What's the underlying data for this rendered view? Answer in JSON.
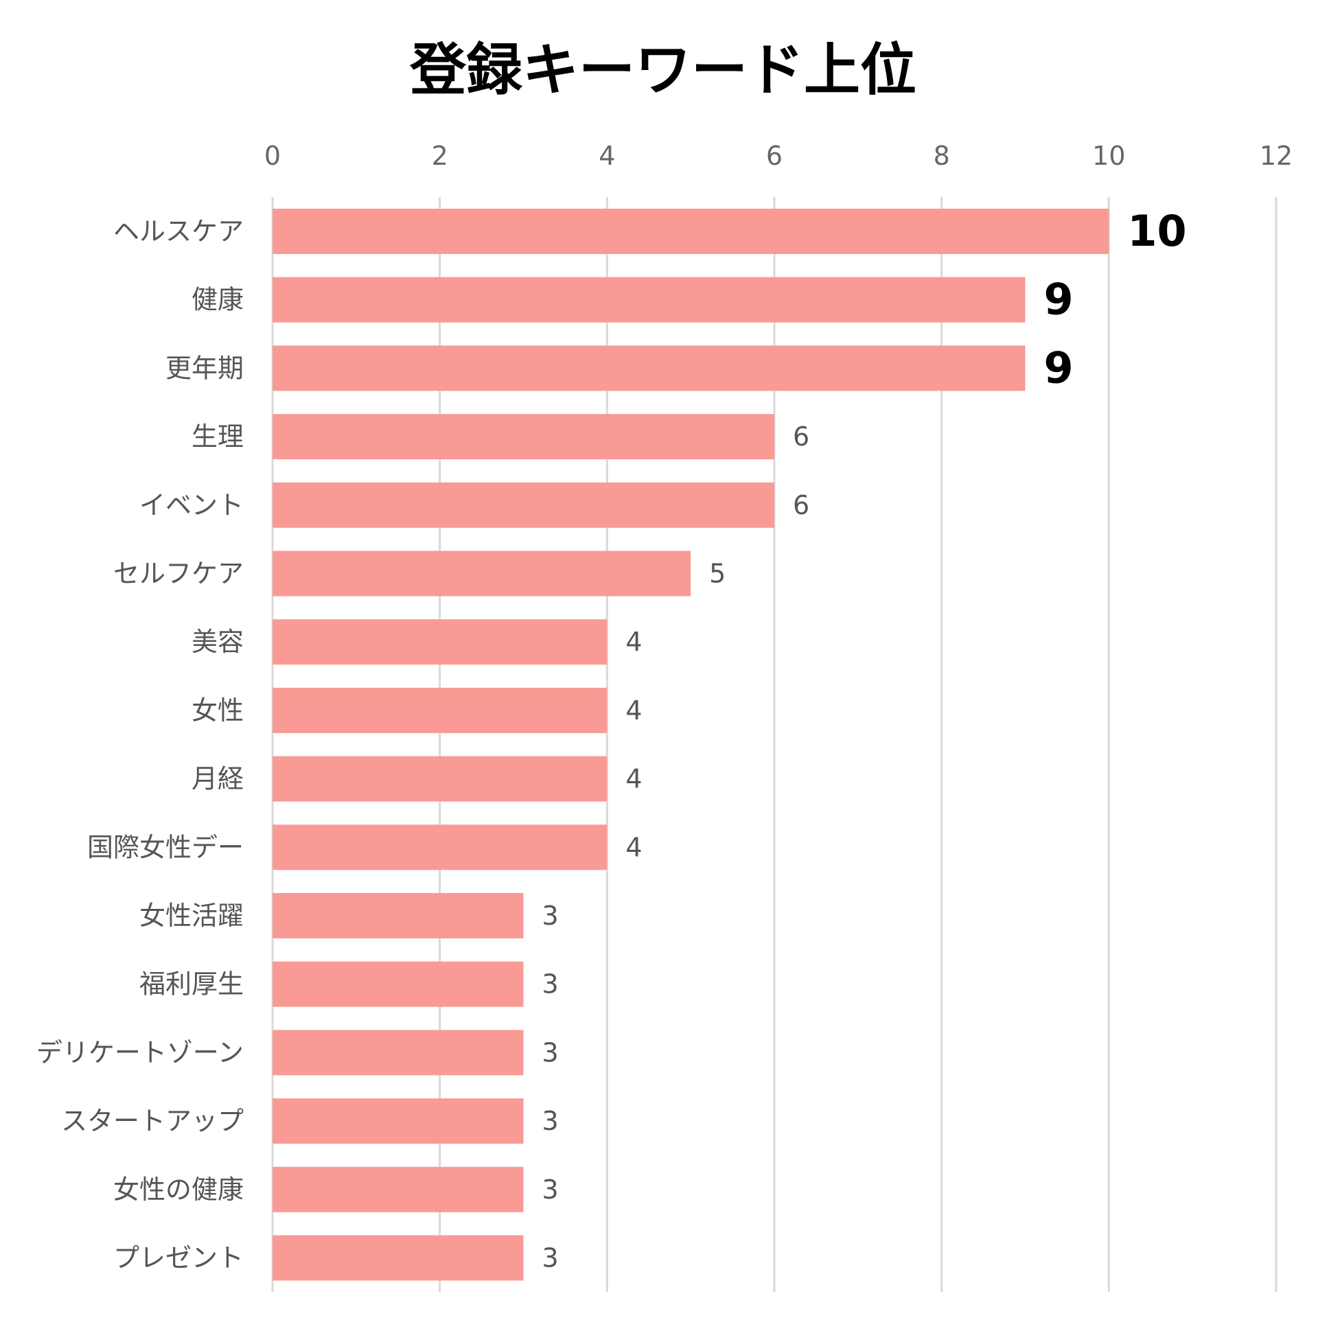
{
  "chart_data": {
    "type": "bar",
    "orientation": "horizontal",
    "title": "登録キーワード上位",
    "categories": [
      "ヘルスケア",
      "健康",
      "更年期",
      "生理",
      "イベント",
      "セルフケア",
      "美容",
      "女性",
      "月経",
      "国際女性デー",
      "女性活躍",
      "福利厚生",
      "デリケートゾーン",
      "スタートアップ",
      "女性の健康",
      "プレゼント"
    ],
    "values": [
      10,
      9,
      9,
      6,
      6,
      5,
      4,
      4,
      4,
      4,
      3,
      3,
      3,
      3,
      3,
      3
    ],
    "xlim": [
      0,
      12
    ],
    "ticks": [
      "0",
      "2",
      "4",
      "6",
      "8",
      "10",
      "12"
    ],
    "x_axis_position": "top",
    "grid": true,
    "legend": "none",
    "bar_color": "#f99a94",
    "highlight_value_labels_for_top": 3
  }
}
